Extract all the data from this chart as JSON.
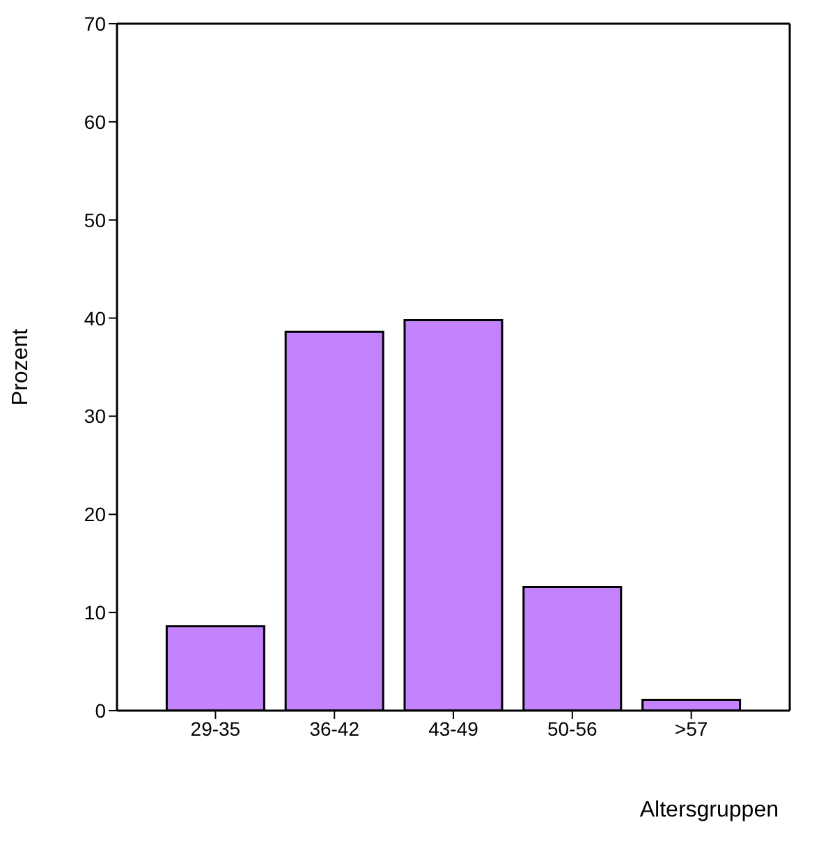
{
  "chart_data": {
    "type": "bar",
    "xlabel": "Altersgruppen",
    "ylabel": "Prozent",
    "categories": [
      "29-35",
      "36-42",
      "43-49",
      "50-56",
      ">57"
    ],
    "values": [
      8.6,
      38.6,
      39.8,
      12.6,
      1.1
    ],
    "color": "#c283fc",
    "ylim": [
      0,
      70
    ],
    "yticks": [
      0,
      10,
      20,
      30,
      40,
      50,
      60,
      70
    ],
    "grid": false,
    "legend": false
  }
}
